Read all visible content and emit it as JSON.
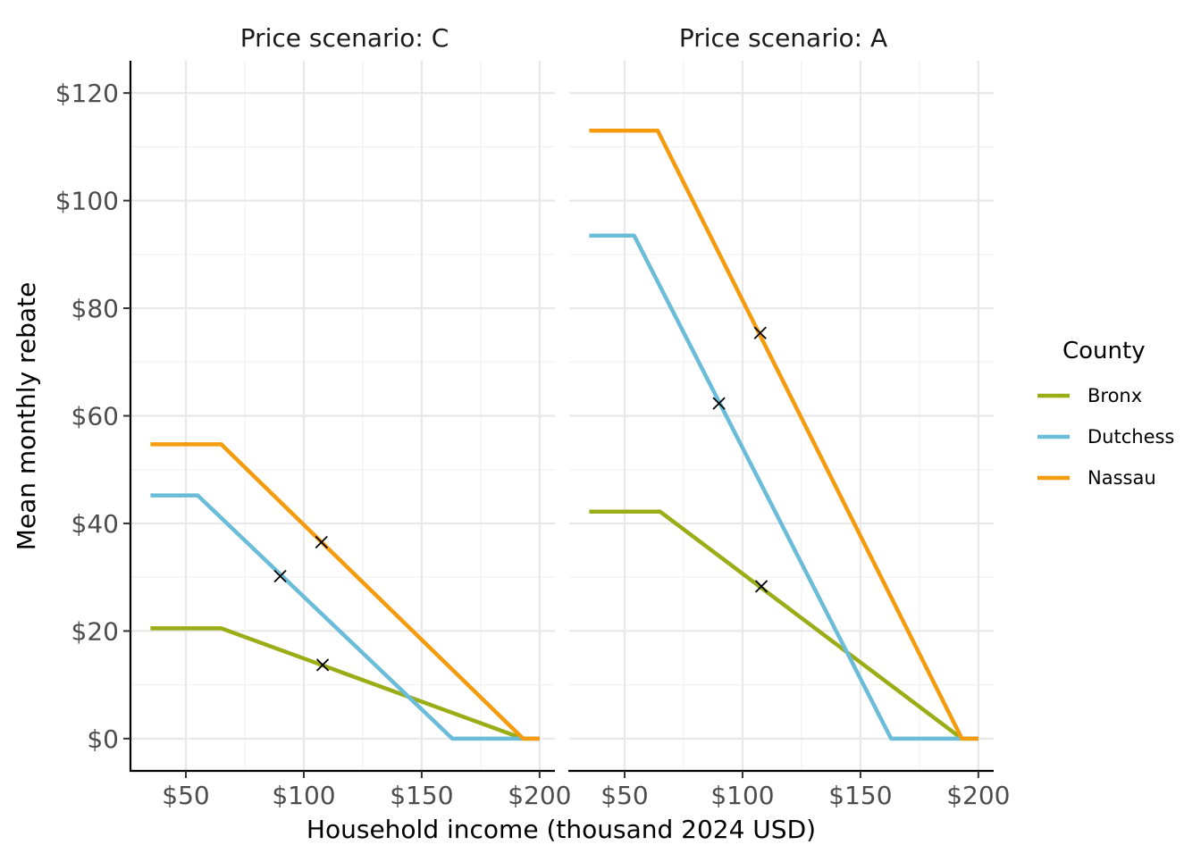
{
  "chart_data": {
    "type": "line",
    "xlabel": "Household income (thousand 2024 USD)",
    "ylabel": "Mean monthly rebate",
    "xlim": [
      26.5,
      206.5
    ],
    "ylim": [
      -6,
      126
    ],
    "x_ticks": [
      50,
      100,
      150,
      200
    ],
    "x_tick_labels": [
      "$50",
      "$100",
      "$150",
      "$200"
    ],
    "y_ticks": [
      0,
      20,
      40,
      60,
      80,
      100,
      120
    ],
    "y_tick_labels": [
      "$0",
      "$20",
      "$40",
      "$60",
      "$80",
      "$100",
      "$120"
    ],
    "grid": true,
    "legend": {
      "title": "County",
      "position": "right",
      "entries": [
        {
          "name": "Bronx",
          "color": "#9aad16"
        },
        {
          "name": "Dutchess",
          "color": "#6bbcd8"
        },
        {
          "name": "Nassau",
          "color": "#f49b0e"
        }
      ]
    },
    "panels": [
      {
        "title": "Price scenario: C",
        "series": [
          {
            "name": "Bronx",
            "color": "#9aad16",
            "points": [
              [
                35,
                20.5
              ],
              [
                65,
                20.5
              ],
              [
                193,
                0
              ],
              [
                200,
                0
              ]
            ]
          },
          {
            "name": "Dutchess",
            "color": "#6bbcd8",
            "points": [
              [
                35,
                45.2
              ],
              [
                55,
                45.2
              ],
              [
                163,
                0
              ],
              [
                200,
                0
              ]
            ]
          },
          {
            "name": "Nassau",
            "color": "#f49b0e",
            "points": [
              [
                35,
                54.7
              ],
              [
                65,
                54.7
              ],
              [
                193,
                0
              ],
              [
                200,
                0
              ]
            ]
          }
        ],
        "markers": [
          {
            "series": "Bronx",
            "x": 108,
            "y": 13.7
          },
          {
            "series": "Dutchess",
            "x": 90,
            "y": 30.2
          },
          {
            "series": "Nassau",
            "x": 107.5,
            "y": 36.5
          }
        ]
      },
      {
        "title": "Price scenario: A",
        "series": [
          {
            "name": "Bronx",
            "color": "#9aad16",
            "points": [
              [
                35,
                42.2
              ],
              [
                65,
                42.2
              ],
              [
                193,
                0
              ],
              [
                200,
                0
              ]
            ]
          },
          {
            "name": "Dutchess",
            "color": "#6bbcd8",
            "points": [
              [
                35,
                93.5
              ],
              [
                54,
                93.5
              ],
              [
                163,
                0
              ],
              [
                200,
                0
              ]
            ]
          },
          {
            "name": "Nassau",
            "color": "#f49b0e",
            "points": [
              [
                35,
                113
              ],
              [
                64,
                113
              ],
              [
                193,
                0
              ],
              [
                200,
                0
              ]
            ]
          }
        ],
        "markers": [
          {
            "series": "Bronx",
            "x": 108,
            "y": 28.3
          },
          {
            "series": "Dutchess",
            "x": 90,
            "y": 62.3
          },
          {
            "series": "Nassau",
            "x": 107.5,
            "y": 75.4
          }
        ]
      }
    ]
  }
}
